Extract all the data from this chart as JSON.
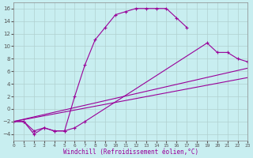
{
  "xlabel": "Windchill (Refroidissement éolien,°C)",
  "background_color": "#c8eef0",
  "line_color": "#990099",
  "grid_color": "#b0d0d0",
  "xlim": [
    0,
    23
  ],
  "ylim": [
    -5,
    17
  ],
  "xticks": [
    0,
    1,
    2,
    3,
    4,
    5,
    6,
    7,
    8,
    9,
    10,
    11,
    12,
    13,
    14,
    15,
    16,
    17,
    18,
    19,
    20,
    21,
    22,
    23
  ],
  "yticks": [
    -4,
    -2,
    0,
    2,
    4,
    6,
    8,
    10,
    12,
    14,
    16
  ],
  "line1_x": [
    0,
    1,
    2,
    3,
    4,
    5,
    6,
    7,
    8,
    9,
    10,
    11,
    12,
    13,
    14,
    15,
    16,
    17
  ],
  "line1_y": [
    -2,
    -2,
    -4,
    -3,
    -3.5,
    -3.5,
    2,
    7,
    11,
    13,
    15,
    15.5,
    16,
    16,
    16,
    16,
    14.5,
    13
  ],
  "line2_x": [
    0,
    1,
    2,
    3,
    4,
    5,
    6,
    7,
    19,
    20,
    21,
    22,
    23
  ],
  "line2_y": [
    -2,
    -2,
    -3.5,
    -3,
    -3.5,
    -3.5,
    -3,
    -2,
    10.5,
    9,
    9,
    8,
    7.5
  ],
  "line3_x": [
    0,
    23
  ],
  "line3_y": [
    -2,
    6.5
  ],
  "line4_x": [
    0,
    23
  ],
  "line4_y": [
    -2,
    5.0
  ],
  "xlabel_fontsize": 5.5,
  "tick_fontsize_x": 4.5,
  "tick_fontsize_y": 5.0
}
